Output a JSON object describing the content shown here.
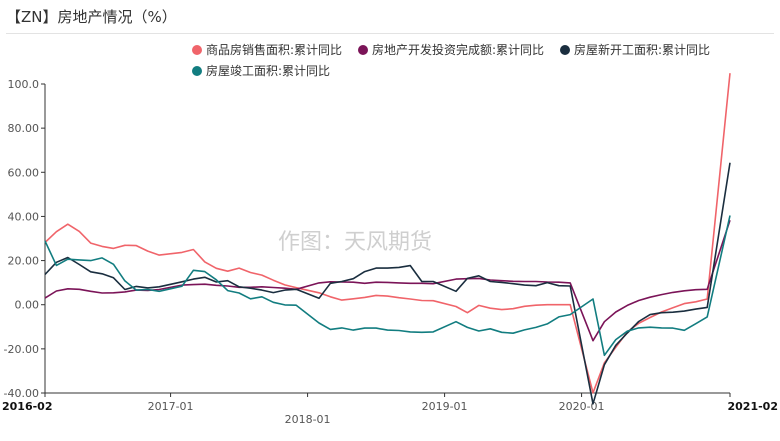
{
  "header": {
    "title": "【ZN】房地产情况（%）"
  },
  "watermark": "作图：天风期货",
  "colors": {
    "axis": "#333333",
    "tick": "#555555",
    "rule": "#e3e3e3"
  },
  "chart_data": {
    "type": "line",
    "title": "【ZN】房地产情况（%）",
    "xlabel": "",
    "ylabel": "",
    "ylim": [
      -40,
      100
    ],
    "yticks": [
      "-40.00",
      "-20.00",
      "0.00",
      "20.00",
      "40.00",
      "60.00",
      "80.00",
      "100.0"
    ],
    "ytick_values": [
      -40,
      -20,
      0,
      20,
      40,
      60,
      80,
      100
    ],
    "grid": false,
    "legend_position": "top",
    "x": [
      "2016-02",
      "2016-03",
      "2016-04",
      "2016-05",
      "2016-06",
      "2016-07",
      "2016-08",
      "2016-09",
      "2016-10",
      "2016-11",
      "2016-12",
      "2017-02",
      "2017-03",
      "2017-04",
      "2017-05",
      "2017-06",
      "2017-07",
      "2017-08",
      "2017-09",
      "2017-10",
      "2017-11",
      "2017-12",
      "2018-02",
      "2018-03",
      "2018-04",
      "2018-05",
      "2018-06",
      "2018-07",
      "2018-08",
      "2018-09",
      "2018-10",
      "2018-11",
      "2018-12",
      "2019-02",
      "2019-03",
      "2019-04",
      "2019-05",
      "2019-06",
      "2019-07",
      "2019-08",
      "2019-09",
      "2019-10",
      "2019-11",
      "2019-12",
      "2020-02",
      "2020-03",
      "2020-04",
      "2020-05",
      "2020-06",
      "2020-07",
      "2020-08",
      "2020-09",
      "2020-10",
      "2020-11",
      "2020-12",
      "2021-02"
    ],
    "xtick_labels": [
      {
        "label": "2016-02",
        "at": "2016-02",
        "bold": true,
        "row": 0
      },
      {
        "label": "2017-01",
        "at": "2017-01",
        "bold": false,
        "row": 0
      },
      {
        "label": "2018-01",
        "at": "2018-01",
        "bold": false,
        "row": 1
      },
      {
        "label": "2019-01",
        "at": "2019-01",
        "bold": false,
        "row": 0
      },
      {
        "label": "2020-01",
        "at": "2020-01",
        "bold": false,
        "row": 0
      },
      {
        "label": "2021-02",
        "at": "2021-02",
        "bold": true,
        "row": 0
      }
    ],
    "series": [
      {
        "name": "商品房销售面积:累计同比",
        "color": "#f0646a",
        "values": [
          28.2,
          33.1,
          36.5,
          33.2,
          27.9,
          26.4,
          25.5,
          26.9,
          26.8,
          24.3,
          22.5,
          23.7,
          25.0,
          19.4,
          16.5,
          15.2,
          16.6,
          14.6,
          13.4,
          11.1,
          9.0,
          7.7,
          5.4,
          3.6,
          2.1,
          2.7,
          3.3,
          4.2,
          3.9,
          3.2,
          2.6,
          1.9,
          1.8,
          -0.8,
          -3.6,
          -0.3,
          -1.6,
          -2.2,
          -1.8,
          -0.7,
          -0.2,
          0.0,
          0.0,
          0.0,
          -39.9,
          -26.3,
          -19.3,
          -12.3,
          -8.4,
          -5.8,
          -3.3,
          -1.4,
          0.5,
          1.3,
          2.6,
          104.9
        ]
      },
      {
        "name": "房地产开发投资完成额:累计同比",
        "color": "#7b1458",
        "values": [
          3.0,
          6.2,
          7.2,
          7.0,
          6.1,
          5.3,
          5.4,
          5.8,
          6.6,
          6.5,
          6.9,
          8.9,
          9.1,
          9.3,
          8.8,
          8.5,
          7.9,
          7.9,
          8.1,
          7.8,
          7.5,
          7.0,
          9.9,
          10.4,
          10.3,
          10.2,
          9.7,
          10.2,
          10.1,
          9.9,
          9.7,
          9.7,
          9.5,
          11.6,
          11.8,
          11.9,
          11.2,
          10.9,
          10.6,
          10.5,
          10.5,
          10.3,
          10.2,
          9.9,
          -16.3,
          -7.7,
          -3.3,
          -0.3,
          1.9,
          3.4,
          4.6,
          5.6,
          6.3,
          6.8,
          7.0,
          38.3
        ]
      },
      {
        "name": "房屋新开工面积:累计同比",
        "color": "#1a2e3f",
        "values": [
          13.7,
          19.2,
          21.4,
          18.2,
          14.9,
          14.0,
          12.2,
          6.9,
          8.3,
          7.6,
          8.1,
          10.4,
          11.6,
          12.4,
          10.3,
          10.9,
          8.1,
          7.5,
          6.6,
          5.5,
          6.6,
          7.0,
          2.9,
          9.7,
          10.5,
          11.8,
          15.0,
          16.6,
          16.6,
          16.9,
          17.7,
          10.5,
          10.5,
          6.1,
          11.9,
          13.1,
          10.5,
          10.1,
          9.5,
          8.9,
          8.6,
          10.0,
          8.6,
          8.5,
          -44.9,
          -27.2,
          -18.4,
          -12.8,
          -7.6,
          -4.5,
          -3.6,
          -3.4,
          -2.9,
          -2.0,
          -1.2,
          64.3
        ]
      },
      {
        "name": "房屋竣工面积:累计同比",
        "color": "#127d80",
        "values": [
          28.9,
          17.8,
          20.6,
          20.3,
          20.0,
          21.2,
          18.3,
          10.8,
          6.6,
          6.9,
          6.1,
          8.4,
          15.6,
          15.0,
          11.3,
          6.4,
          5.3,
          2.7,
          3.6,
          1.1,
          -0.1,
          -0.2,
          -8.3,
          -11.2,
          -10.5,
          -11.5,
          -10.6,
          -10.6,
          -11.5,
          -11.7,
          -12.3,
          -12.5,
          -12.3,
          -7.7,
          -10.3,
          -11.9,
          -10.9,
          -12.5,
          -12.9,
          -11.4,
          -10.3,
          -8.7,
          -5.5,
          -4.5,
          2.6,
          -22.9,
          -15.8,
          -12.0,
          -10.5,
          -10.2,
          -10.5,
          -10.6,
          -11.6,
          -8.6,
          -5.5,
          40.4
        ]
      }
    ]
  }
}
